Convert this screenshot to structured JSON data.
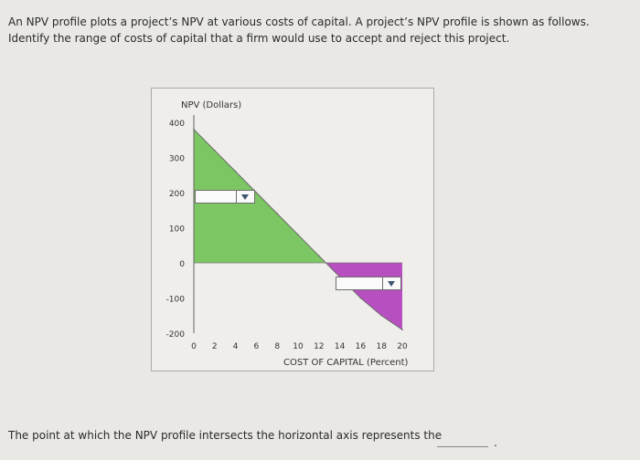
{
  "question": {
    "text": "An NPV profile plots a project’s NPV at various costs of capital. A project’s NPV profile is shown as follows. Identify the range of costs of capital that a firm would use to accept and reject this project."
  },
  "chart_data": {
    "type": "line",
    "ylabel": "NPV (Dollars)",
    "xlabel": "COST OF CAPITAL (Percent)",
    "x": [
      0,
      2,
      4,
      6,
      8,
      10,
      12,
      14,
      16,
      18,
      20
    ],
    "y": [
      380,
      320,
      260,
      200,
      140,
      80,
      20,
      -40,
      -100,
      -150,
      -190
    ],
    "xlim": [
      0,
      20
    ],
    "ylim": [
      -200,
      400
    ],
    "x_ticks": [
      "0",
      "2",
      "4",
      "6",
      "8",
      "10",
      "12",
      "14",
      "16",
      "18",
      "20"
    ],
    "y_ticks": [
      "400",
      "300",
      "200",
      "100",
      "0",
      "-100",
      "-200"
    ],
    "positive_fill_color": "#7cc663",
    "negative_fill_color": "#b84fc0"
  },
  "dropdowns": {
    "accept_range": "",
    "reject_range": ""
  },
  "followup": {
    "text": "The point at which the NPV profile intersects the horizontal axis represents the",
    "blank": "",
    "period": "."
  }
}
